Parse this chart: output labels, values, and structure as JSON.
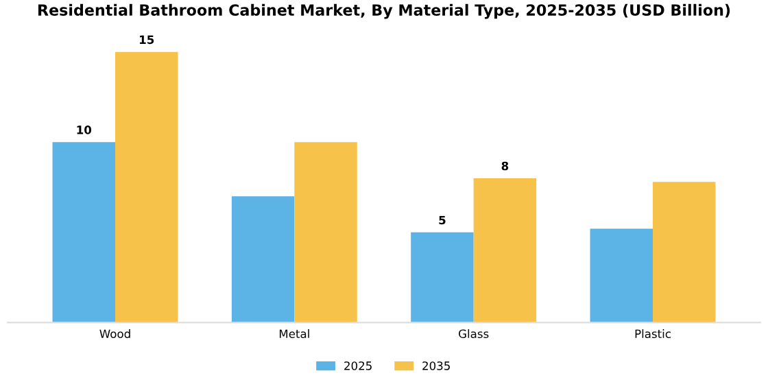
{
  "chart_data": {
    "type": "bar",
    "title": "Residential Bathroom Cabinet Market, By Material Type, 2025-2035 (USD Billion)",
    "categories": [
      "Wood",
      "Metal",
      "Glass",
      "Plastic"
    ],
    "series": [
      {
        "name": "2025",
        "color": "#5bb3e6",
        "values": [
          10,
          7,
          5,
          5.2
        ],
        "value_labels": [
          "10",
          null,
          "5",
          null
        ]
      },
      {
        "name": "2035",
        "color": "#f7c24a",
        "values": [
          15,
          10,
          8,
          7.8
        ],
        "value_labels": [
          "15",
          null,
          "8",
          null
        ]
      }
    ],
    "tick_labels": "x",
    "grid": false,
    "legend": "bottom"
  }
}
